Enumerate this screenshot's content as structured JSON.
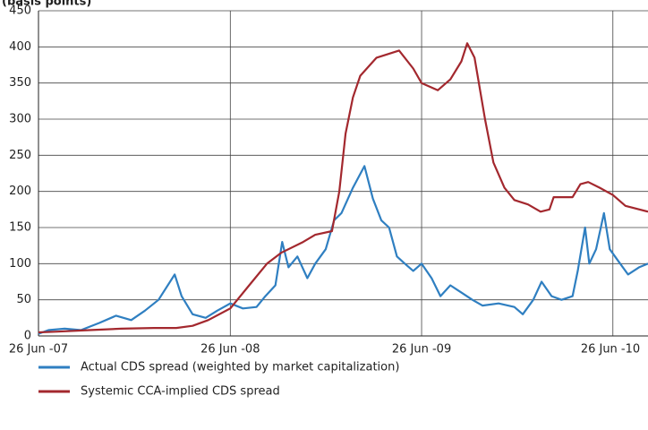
{
  "chart_data": {
    "type": "line",
    "y_label": "(basis points)",
    "xlim": [
      "2007-06-26",
      "2010-09-01"
    ],
    "xticks": [
      {
        "value": "2007-06-26",
        "label": "26 Jun -07"
      },
      {
        "value": "2008-06-26",
        "label": "26 Jun -08"
      },
      {
        "value": "2009-06-26",
        "label": "26 Jun -09"
      },
      {
        "value": "2010-06-26",
        "label": "26 Jun -10"
      }
    ],
    "ylim": [
      0,
      450
    ],
    "yticks": [
      0,
      50,
      100,
      150,
      200,
      250,
      300,
      350,
      400,
      450
    ],
    "grid": true,
    "legend": "bottom",
    "series": [
      {
        "name": "Actual CDS spread (weighted by market capitalization)",
        "color": "#2f7fc1",
        "x": [
          "2007-06-26",
          "2007-07-15",
          "2007-08-15",
          "2007-09-15",
          "2007-10-20",
          "2007-11-21",
          "2007-12-20",
          "2008-01-15",
          "2008-02-10",
          "2008-03-12",
          "2008-03-25",
          "2008-04-15",
          "2008-05-10",
          "2008-06-01",
          "2008-06-26",
          "2008-07-20",
          "2008-08-15",
          "2008-09-01",
          "2008-09-20",
          "2008-10-03",
          "2008-10-15",
          "2008-11-01",
          "2008-11-20",
          "2008-12-05",
          "2008-12-25",
          "2009-01-10",
          "2009-01-24",
          "2009-02-15",
          "2009-03-09",
          "2009-03-25",
          "2009-04-10",
          "2009-04-25",
          "2009-05-10",
          "2009-05-25",
          "2009-06-10",
          "2009-06-26",
          "2009-07-15",
          "2009-08-01",
          "2009-08-20",
          "2009-09-10",
          "2009-10-01",
          "2009-10-20",
          "2009-11-20",
          "2009-12-20",
          "2010-01-05",
          "2010-01-25",
          "2010-02-10",
          "2010-03-01",
          "2010-03-20",
          "2010-04-10",
          "2010-04-20",
          "2010-05-04",
          "2010-05-12",
          "2010-05-25",
          "2010-06-09",
          "2010-06-20",
          "2010-07-05",
          "2010-07-25",
          "2010-08-15",
          "2010-09-01"
        ],
        "values": [
          3,
          8,
          10,
          8,
          18,
          28,
          22,
          35,
          50,
          85,
          55,
          30,
          25,
          35,
          45,
          38,
          40,
          55,
          70,
          130,
          95,
          110,
          80,
          100,
          120,
          160,
          170,
          205,
          235,
          190,
          160,
          150,
          110,
          100,
          90,
          100,
          80,
          55,
          70,
          60,
          50,
          42,
          45,
          40,
          30,
          50,
          75,
          55,
          50,
          55,
          90,
          150,
          100,
          120,
          170,
          120,
          105,
          85,
          95,
          100
        ]
      },
      {
        "name": "Systemic CCA-implied CDS spread",
        "color": "#a3282e",
        "x": [
          "2007-06-26",
          "2007-08-01",
          "2007-10-01",
          "2007-12-01",
          "2008-02-01",
          "2008-03-15",
          "2008-04-15",
          "2008-05-15",
          "2008-06-26",
          "2008-08-01",
          "2008-09-04",
          "2008-10-01",
          "2008-11-12",
          "2008-12-05",
          "2009-01-06",
          "2009-01-20",
          "2009-02-01",
          "2009-02-15",
          "2009-03-01",
          "2009-04-01",
          "2009-05-14",
          "2009-06-10",
          "2009-06-26",
          "2009-07-27",
          "2009-08-20",
          "2009-09-10",
          "2009-09-21",
          "2009-10-05",
          "2009-10-25",
          "2009-11-10",
          "2009-12-01",
          "2009-12-20",
          "2010-01-15",
          "2010-02-08",
          "2010-02-25",
          "2010-03-05",
          "2010-04-10",
          "2010-04-25",
          "2010-05-10",
          "2010-06-01",
          "2010-06-26",
          "2010-07-20",
          "2010-09-01"
        ],
        "values": [
          5,
          6,
          8,
          10,
          11,
          11,
          14,
          22,
          38,
          70,
          100,
          115,
          130,
          140,
          145,
          200,
          280,
          330,
          360,
          385,
          395,
          370,
          350,
          340,
          355,
          380,
          405,
          385,
          300,
          240,
          205,
          188,
          182,
          172,
          175,
          192,
          192,
          210,
          213,
          205,
          195,
          180,
          172
        ]
      }
    ]
  }
}
